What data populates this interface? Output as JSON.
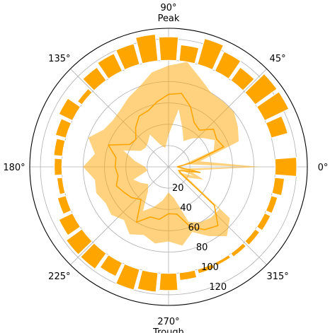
{
  "chart_data": {
    "type": "polar",
    "theta_unit": "degrees",
    "r_range": [
      0,
      130
    ],
    "radial_ticks": [
      "20",
      "40",
      "60",
      "80",
      "100",
      "120"
    ],
    "radial_tick_values": [
      20,
      40,
      60,
      80,
      100,
      120
    ],
    "angular_ticks": [
      {
        "deg": 0,
        "label": "0°"
      },
      {
        "deg": 45,
        "label": "45°"
      },
      {
        "deg": 90,
        "label": "90°",
        "sub": "Peak"
      },
      {
        "deg": 135,
        "label": "135°"
      },
      {
        "deg": 180,
        "label": "180°"
      },
      {
        "deg": 225,
        "label": "225°"
      },
      {
        "deg": 270,
        "label": "270°",
        "sub": "Trough"
      },
      {
        "deg": 315,
        "label": "315°"
      }
    ],
    "grid": true,
    "colors": {
      "accent": "#FFA500",
      "band_fill": "#FFA500",
      "band_opacity": 0.5,
      "grid": "#b0b0b0"
    },
    "band": {
      "theta": [
        0,
        10,
        20,
        30,
        40,
        50,
        60,
        70,
        80,
        90,
        100,
        110,
        120,
        130,
        140,
        150,
        160,
        170,
        180,
        190,
        200,
        210,
        220,
        230,
        240,
        250,
        260,
        270,
        280,
        290,
        300,
        310,
        320,
        330,
        340,
        350
      ],
      "lower": [
        72,
        15,
        45,
        50,
        42,
        35,
        28,
        38,
        55,
        30,
        18,
        22,
        35,
        30,
        28,
        30,
        45,
        32,
        22,
        20,
        35,
        30,
        25,
        30,
        48,
        40,
        32,
        24,
        30,
        55,
        60,
        62,
        62,
        10,
        25,
        10
      ],
      "upper": [
        85,
        30,
        70,
        75,
        80,
        80,
        80,
        88,
        100,
        95,
        90,
        80,
        75,
        70,
        68,
        70,
        80,
        70,
        80,
        70,
        72,
        68,
        70,
        65,
        73,
        68,
        73,
        70,
        75,
        65,
        75,
        85,
        75,
        20,
        35,
        20
      ]
    },
    "line": {
      "theta": [
        0,
        10,
        20,
        30,
        40,
        50,
        60,
        70,
        80,
        90,
        100,
        110,
        120,
        130,
        140,
        150,
        160,
        170,
        180,
        190,
        200,
        210,
        220,
        230,
        240,
        250,
        260,
        270,
        280,
        290,
        300,
        310,
        320,
        330,
        340,
        350
      ],
      "r": [
        8,
        22,
        55,
        52,
        55,
        45,
        48,
        60,
        70,
        68,
        62,
        56,
        55,
        48,
        40,
        42,
        60,
        50,
        50,
        48,
        52,
        48,
        45,
        40,
        60,
        50,
        50,
        44,
        45,
        60,
        68,
        72,
        56,
        15,
        10,
        30
      ]
    },
    "bars": {
      "width_deg": 8.5,
      "bottom": 100,
      "theta": [
        0,
        10,
        20,
        30,
        40,
        50,
        60,
        70,
        80,
        90,
        100,
        110,
        120,
        130,
        140,
        150,
        160,
        170,
        180,
        190,
        200,
        210,
        220,
        230,
        240,
        250,
        260,
        270,
        280,
        290,
        300,
        310,
        320,
        330,
        340,
        350
      ],
      "height": [
        20,
        0,
        16,
        25,
        25,
        15,
        20,
        25,
        15,
        22,
        25,
        20,
        18,
        15,
        5,
        14,
        10,
        8,
        7,
        5,
        8,
        14,
        18,
        18,
        14,
        20,
        18,
        16,
        7,
        4,
        3,
        4,
        5,
        6,
        6,
        9
      ]
    }
  }
}
